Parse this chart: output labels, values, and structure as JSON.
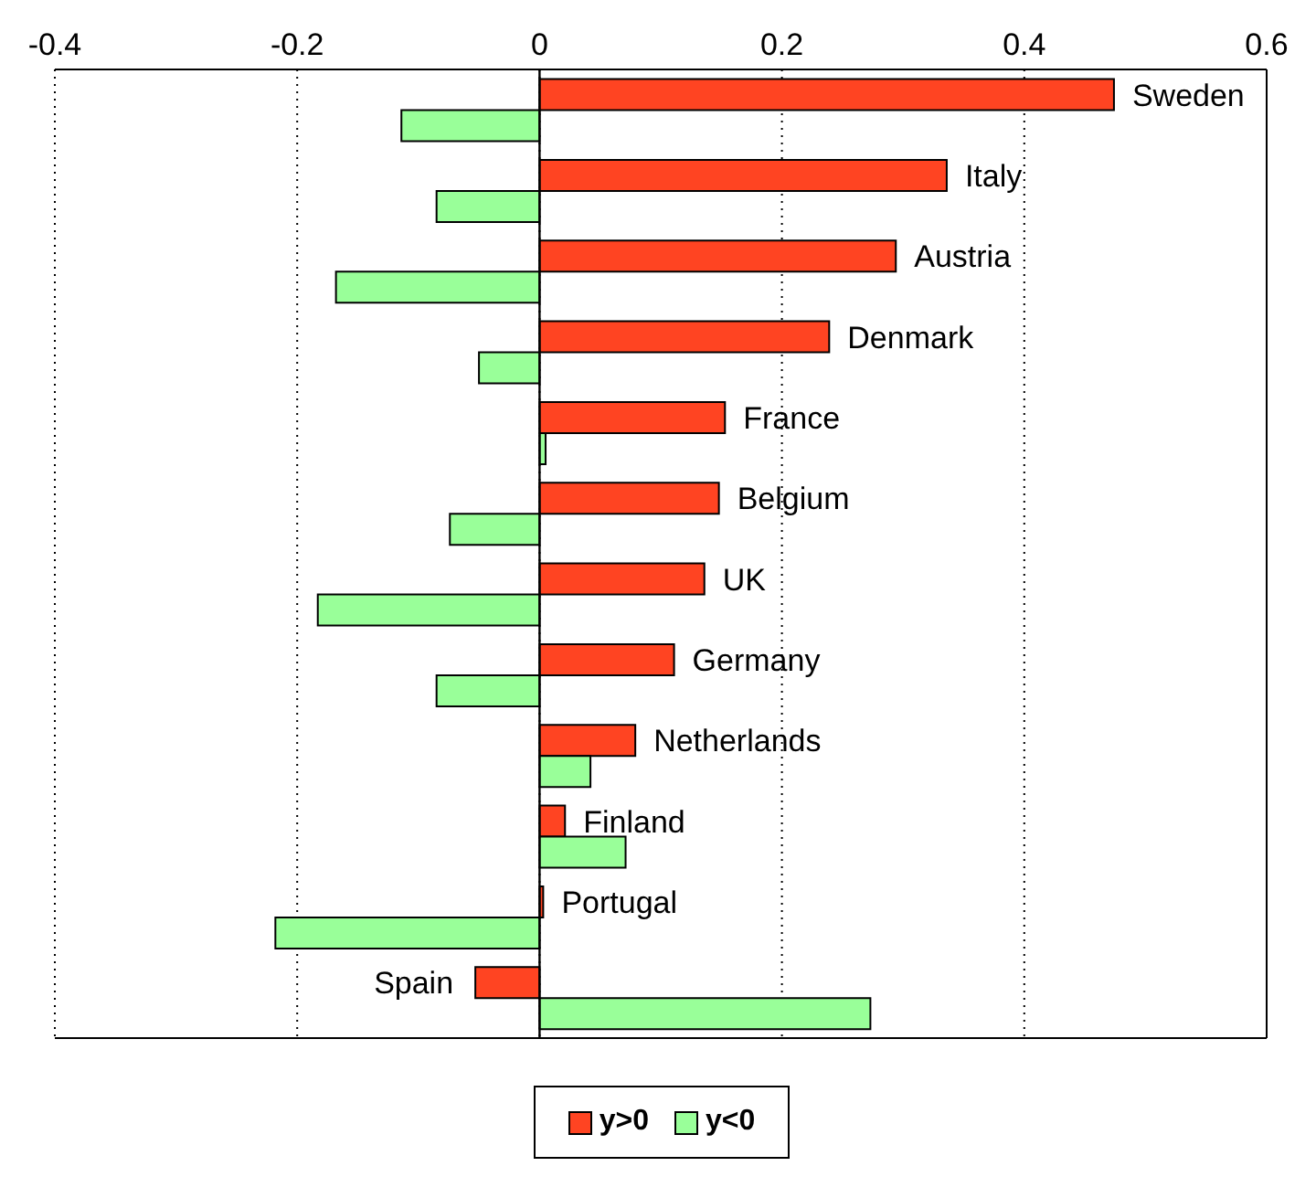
{
  "chart_data": {
    "type": "bar",
    "orientation": "horizontal",
    "categories": [
      "Sweden",
      "Italy",
      "Austria",
      "Denmark",
      "France",
      "Belgium",
      "UK",
      "Germany",
      "Netherlands",
      "Finland",
      "Portugal",
      "Spain"
    ],
    "series": [
      {
        "name": "y>0",
        "color": "#ff4422",
        "values": [
          0.474,
          0.336,
          0.294,
          0.239,
          0.153,
          0.148,
          0.136,
          0.111,
          0.079,
          0.021,
          0.003,
          -0.053
        ]
      },
      {
        "name": "y<0",
        "color": "#99ff99",
        "values": [
          -0.114,
          -0.085,
          -0.168,
          -0.05,
          0.005,
          -0.074,
          -0.183,
          -0.085,
          0.042,
          0.071,
          -0.218,
          0.273
        ]
      }
    ],
    "xlim": [
      -0.4,
      0.6
    ],
    "xticks": [
      -0.4,
      -0.2,
      0,
      0.2,
      0.4,
      0.6
    ],
    "grid": "x",
    "ref_lines": [
      {
        "axis": "x",
        "value": 0
      }
    ],
    "tick_labels": "x",
    "legend": "bottom"
  }
}
